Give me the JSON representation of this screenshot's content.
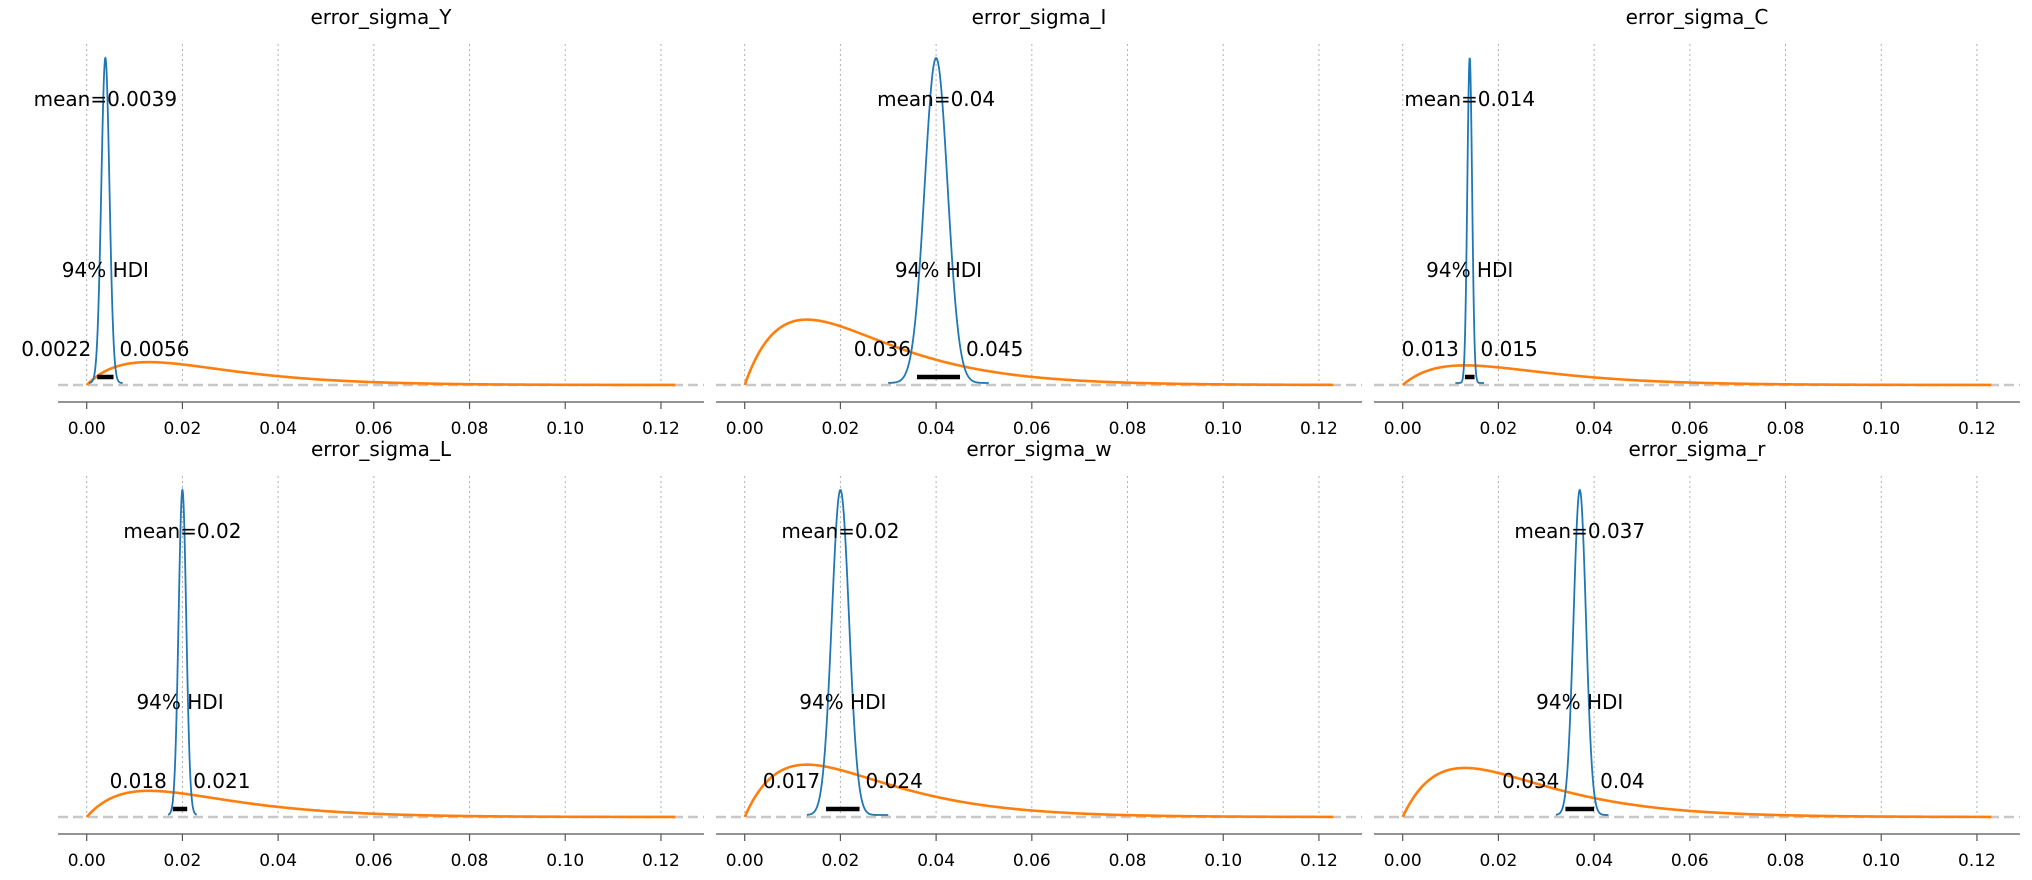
{
  "chart_data": {
    "type": "kde-grid",
    "hdi_label": "94% HDI",
    "x_ticks": [
      "0.00",
      "0.02",
      "0.04",
      "0.06",
      "0.08",
      "0.10",
      "0.12"
    ],
    "xlim": [
      -0.006,
      0.129
    ],
    "grid": "vertical-dotted",
    "colors": {
      "posterior": "#1f77b4",
      "prior": "#ff7f0e",
      "hdi": "#000000",
      "grid": "#b0b0b0",
      "baseline": "#c8c8c8"
    },
    "panels": [
      {
        "title": "error_sigma_Y",
        "mean_label": "mean=0.0039",
        "hdi_low_label": "0.0022",
        "hdi_high_label": "0.0056",
        "mean": 0.0039,
        "posterior_sd": 0.00085,
        "posterior_range": [
          0.0005,
          0.0075
        ],
        "hdi": [
          0.0022,
          0.0056
        ],
        "prior_peak_x": 0.013,
        "prior_peak_rel": 0.07
      },
      {
        "title": "error_sigma_I",
        "mean_label": "mean=0.04",
        "hdi_low_label": "0.036",
        "hdi_high_label": "0.045",
        "mean": 0.04,
        "posterior_sd": 0.0024,
        "posterior_range": [
          0.03,
          0.051
        ],
        "hdi": [
          0.036,
          0.045
        ],
        "prior_peak_x": 0.013,
        "prior_peak_rel": 0.2
      },
      {
        "title": "error_sigma_C",
        "mean_label": "mean=0.014",
        "hdi_low_label": "0.013",
        "hdi_high_label": "0.015",
        "mean": 0.014,
        "posterior_sd": 0.0005,
        "posterior_range": [
          0.011,
          0.017
        ],
        "hdi": [
          0.013,
          0.015
        ],
        "prior_peak_x": 0.013,
        "prior_peak_rel": 0.06
      },
      {
        "title": "error_sigma_L",
        "mean_label": "mean=0.02",
        "hdi_low_label": "0.018",
        "hdi_high_label": "0.021",
        "mean": 0.02,
        "posterior_sd": 0.0008,
        "posterior_range": [
          0.017,
          0.023
        ],
        "hdi": [
          0.018,
          0.021
        ],
        "prior_peak_x": 0.013,
        "prior_peak_rel": 0.08
      },
      {
        "title": "error_sigma_w",
        "mean_label": "mean=0.02",
        "hdi_low_label": "0.017",
        "hdi_high_label": "0.024",
        "mean": 0.02,
        "posterior_sd": 0.0018,
        "posterior_range": [
          0.013,
          0.03
        ],
        "hdi": [
          0.017,
          0.024
        ],
        "prior_peak_x": 0.013,
        "prior_peak_rel": 0.16
      },
      {
        "title": "error_sigma_r",
        "mean_label": "mean=0.037",
        "hdi_low_label": "0.034",
        "hdi_high_label": "0.04",
        "mean": 0.037,
        "posterior_sd": 0.0013,
        "posterior_range": [
          0.032,
          0.043
        ],
        "hdi": [
          0.034,
          0.04
        ],
        "prior_peak_x": 0.013,
        "prior_peak_rel": 0.15
      }
    ]
  }
}
